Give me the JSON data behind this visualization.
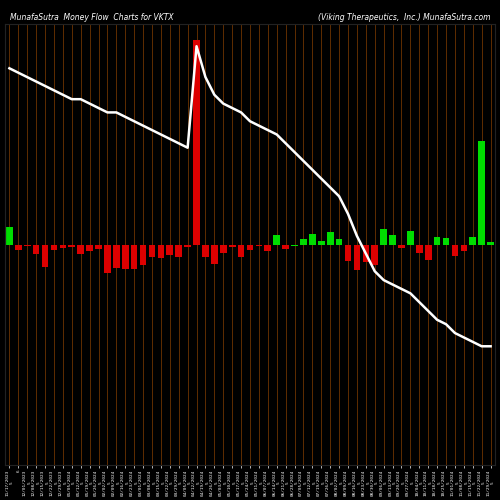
{
  "title_left": "MunafaSutra  Money Flow  Charts for VKTX",
  "title_right": "(Viking Therapeutics,  Inc.) MunafaSutra.com",
  "background_color": "#000000",
  "bar_border_color": "#8B4500",
  "figsize": [
    5.0,
    5.0
  ],
  "dpi": 100,
  "categories": [
    "11/17/2023\n5",
    "6",
    "12/01/2023\n5",
    "12/08/2023\n5",
    "12/15/2023\n5",
    "12/22/2023\n5",
    "12/29/2023\n5",
    "01/05/2024\n5",
    "01/12/2024\n5",
    "01/19/2024\n5",
    "01/26/2024\n5",
    "02/02/2024\n5",
    "02/09/2024\n5",
    "02/16/2024\n5",
    "02/23/2024\n5",
    "03/01/2024\n5",
    "03/08/2024\n5",
    "03/15/2024\n5",
    "03/22/2024\n5",
    "03/29/2024\n5",
    "04/05/2024\n5",
    "04/12/2024\n5",
    "04/19/2024\n5",
    "04/26/2024\n5",
    "05/03/2024\n5",
    "05/10/2024\n5",
    "05/17/2024\n5",
    "05/24/2024\n5",
    "05/31/2024\n5",
    "06/07/2024\n5",
    "06/14/2024\n5",
    "06/21/2024\n5",
    "06/28/2024\n5",
    "07/05/2024\n5",
    "07/12/2024\n5",
    "07/19/2024\n5",
    "07/26/2024\n5",
    "08/02/2024\n5",
    "08/09/2024\n5",
    "08/16/2024\n5",
    "08/23/2024\n5",
    "08/30/2024\n5",
    "09/06/2024\n5",
    "09/13/2024\n5",
    "09/20/2024\n5",
    "09/27/2024\n5",
    "10/04/2024\n5",
    "10/11/2024\n5",
    "10/18/2024\n5",
    "10/25/2024\n5",
    "11/01/2024\n5",
    "11/08/2024\n5",
    "11/15/2024\n5",
    "11/22/2024\n5",
    "11/29/2024\n5"
  ],
  "bar_values": [
    55,
    -18,
    -5,
    -30,
    -70,
    -15,
    -10,
    -8,
    -30,
    -20,
    -12,
    -90,
    -75,
    -78,
    -78,
    -65,
    -40,
    -42,
    -32,
    -40,
    -6,
    650,
    -38,
    -60,
    -25,
    -8,
    -40,
    -15,
    -5,
    -20,
    30,
    -12,
    -3,
    18,
    35,
    12,
    40,
    18,
    -50,
    -80,
    -55,
    -65,
    50,
    30,
    -10,
    45,
    -25,
    -48,
    25,
    20,
    -35,
    -20,
    25,
    330,
    8
  ],
  "bar_colors": [
    "green",
    "red",
    "red",
    "red",
    "red",
    "red",
    "red",
    "red",
    "red",
    "red",
    "red",
    "red",
    "red",
    "red",
    "red",
    "red",
    "red",
    "red",
    "red",
    "red",
    "red",
    "red",
    "red",
    "red",
    "red",
    "red",
    "red",
    "red",
    "red",
    "red",
    "green",
    "red",
    "green",
    "green",
    "green",
    "green",
    "green",
    "green",
    "red",
    "red",
    "red",
    "red",
    "green",
    "green",
    "red",
    "green",
    "red",
    "red",
    "green",
    "green",
    "red",
    "red",
    "green",
    "green",
    "green"
  ],
  "line_values": [
    90,
    89,
    88,
    87,
    86,
    85,
    84,
    83,
    83,
    82,
    81,
    80,
    80,
    79,
    78,
    77,
    76,
    75,
    74,
    73,
    72,
    95,
    88,
    84,
    82,
    81,
    80,
    78,
    77,
    76,
    75,
    73,
    71,
    69,
    67,
    65,
    63,
    61,
    57,
    52,
    48,
    44,
    42,
    41,
    40,
    39,
    37,
    35,
    33,
    32,
    30,
    29,
    28,
    27,
    27
  ],
  "bar_ylim": [
    -700,
    700
  ],
  "line_ylim": [
    0,
    100
  ]
}
